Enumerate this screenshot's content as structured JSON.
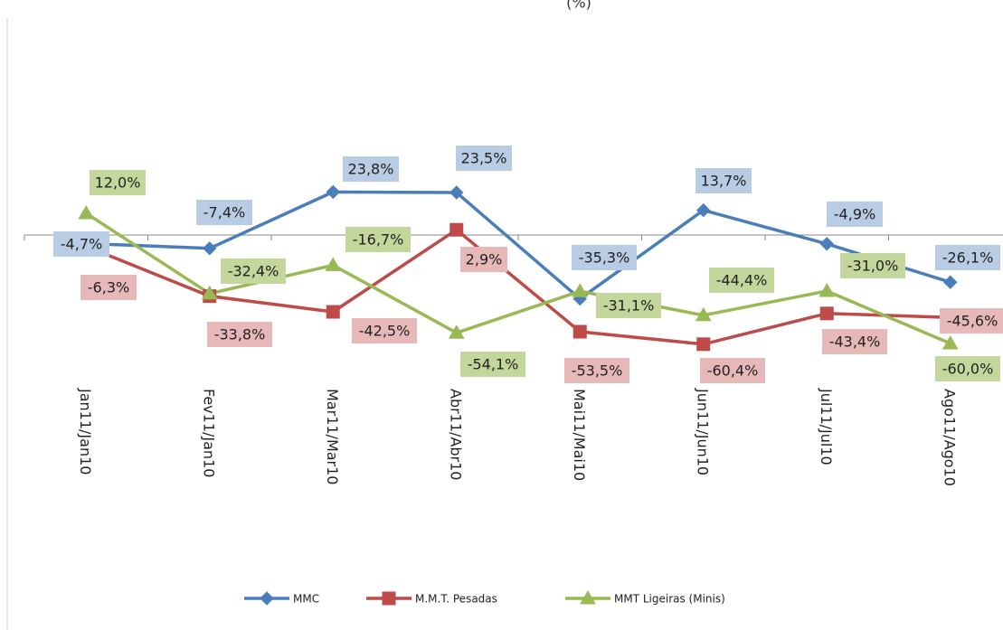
{
  "chart_data": {
    "type": "line",
    "title": "(%)",
    "categories": [
      "Jan11/Jan10",
      "Fev11/Jan10",
      "Mar11/Mar10",
      "Abr11/Abr10",
      "Mai11/Mai10",
      "Jun11/Jun10",
      "Jul11/Jul10",
      "Ago11/Ago10"
    ],
    "ylim": [
      -80,
      60
    ],
    "legend": "bottom",
    "series": [
      {
        "name": "MMC",
        "color": "#4a7ebb",
        "marker": "diamond",
        "values": [
          -4.7,
          -7.4,
          23.8,
          23.5,
          -35.3,
          13.7,
          -4.9,
          -26.1
        ],
        "value_labels": [
          "-4,7%",
          "-7,4%",
          "23,8%",
          "23,5%",
          "-35,3%",
          "13,7%",
          "-4,9%",
          "-26,1%"
        ],
        "label_color": "#b8cce4"
      },
      {
        "name": "M.M.T. Pesadas",
        "color": "#be4b48",
        "marker": "square",
        "values": [
          -6.3,
          -33.8,
          -42.5,
          2.9,
          -53.5,
          -60.4,
          -43.4,
          -45.6
        ],
        "value_labels": [
          "-6,3%",
          "-33,8%",
          "-42,5%",
          "2,9%",
          "-53,5%",
          "-60,4%",
          "-43,4%",
          "-45,6%"
        ],
        "label_color": "#e6b9b8"
      },
      {
        "name": "MMT Ligeiras (Minis)",
        "color": "#98b954",
        "marker": "triangle",
        "values": [
          12.0,
          -32.4,
          -16.7,
          -54.1,
          -31.1,
          -44.4,
          -31.0,
          -60.0
        ],
        "value_labels": [
          "12,0%",
          "-32,4%",
          "-16,7%",
          "-54,1%",
          "-31,1%",
          "-44,4%",
          "-31,0%",
          "-60,0%"
        ],
        "label_color": "#c3d69b"
      }
    ]
  }
}
